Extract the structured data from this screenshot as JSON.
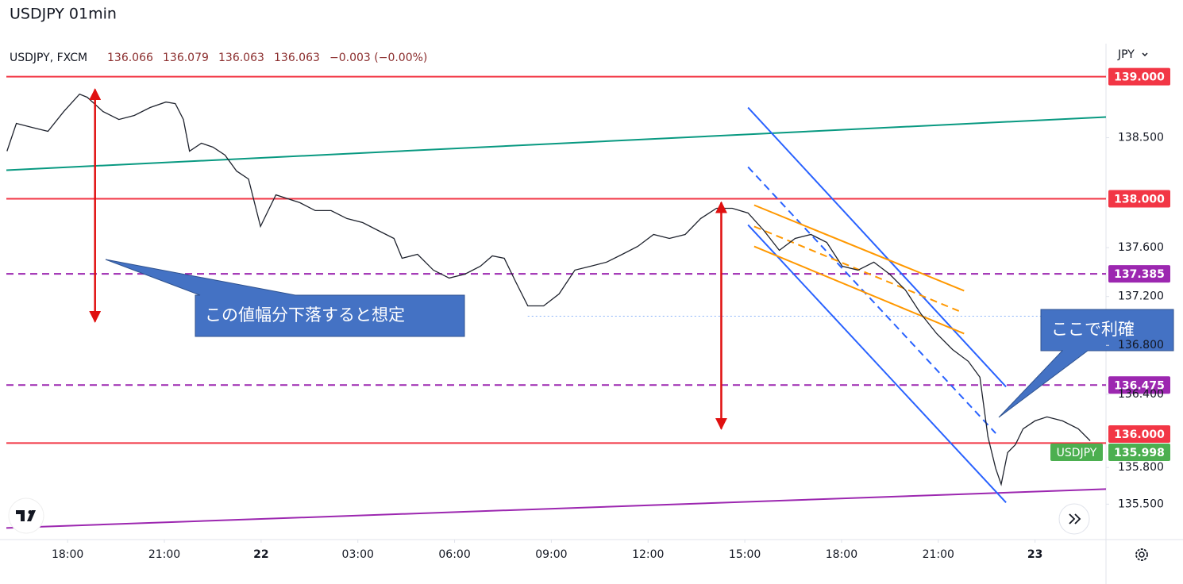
{
  "title": "USDJPY 01min",
  "chart_data": {
    "type": "line",
    "symbol": "USDJPY, FXCM",
    "ohlc": [
      "136.066",
      "136.079",
      "136.063",
      "136.063"
    ],
    "change": "−0.003 (−0.00%)",
    "currency": "JPY",
    "x": [
      16.12,
      16.41,
      16.9,
      17.39,
      17.88,
      18.37,
      18.61,
      19.1,
      19.59,
      20.07,
      20.56,
      21.05,
      21.34,
      21.59,
      21.78,
      22.15,
      22.51,
      22.88,
      23.24,
      23.61,
      23.98,
      24.22,
      24.46,
      24.83,
      25.2,
      25.68,
      26.17,
      26.66,
      27.15,
      27.63,
      28.12,
      28.37,
      28.85,
      29.34,
      29.83,
      30.32,
      30.8,
      31.17,
      31.54,
      31.9,
      32.27,
      32.76,
      33.24,
      33.73,
      34.22,
      34.71,
      35.2,
      35.68,
      36.17,
      36.66,
      37.15,
      37.63,
      38.12,
      38.61,
      39.1,
      39.59,
      40.07,
      40.56,
      41.05,
      41.54,
      42.02,
      42.51,
      43,
      43.49,
      43.98,
      44.46,
      44.95,
      45.44,
      45.93,
      46.29,
      46.54,
      46.78,
      46.95,
      47.15,
      47.39,
      47.63,
      48,
      48.37,
      48.85,
      49.34,
      49.71
    ],
    "series": [
      {
        "name": "USDJPY",
        "color": "#1e222d",
        "values": [
          138.39,
          138.617,
          138.584,
          138.552,
          138.714,
          138.857,
          138.831,
          138.714,
          138.649,
          138.682,
          138.747,
          138.792,
          138.779,
          138.649,
          138.39,
          138.455,
          138.422,
          138.357,
          138.227,
          138.162,
          137.773,
          137.903,
          138.032,
          138.0,
          137.968,
          137.903,
          137.903,
          137.838,
          137.805,
          137.74,
          137.675,
          137.513,
          137.545,
          137.416,
          137.351,
          137.383,
          137.448,
          137.532,
          137.513,
          137.318,
          137.123,
          137.123,
          137.221,
          137.416,
          137.448,
          137.481,
          137.545,
          137.61,
          137.708,
          137.675,
          137.708,
          137.838,
          137.922,
          137.922,
          137.883,
          137.74,
          137.578,
          137.675,
          137.708,
          137.643,
          137.448,
          137.416,
          137.481,
          137.383,
          137.253,
          137.058,
          136.896,
          136.766,
          136.669,
          136.539,
          136.052,
          135.792,
          135.662,
          135.922,
          135.987,
          136.117,
          136.182,
          136.214,
          136.182,
          136.117,
          136.019
        ]
      }
    ],
    "xlim": [
      16.1,
      50.2
    ],
    "xticks": [
      {
        "value": 18,
        "label": "18:00"
      },
      {
        "value": 21,
        "label": "21:00"
      },
      {
        "value": 24,
        "label": "22"
      },
      {
        "value": 27,
        "label": "03:00"
      },
      {
        "value": 30,
        "label": "06:00"
      },
      {
        "value": 33,
        "label": "09:00"
      },
      {
        "value": 36,
        "label": "12:00"
      },
      {
        "value": 39,
        "label": "15:00"
      },
      {
        "value": 42,
        "label": "18:00"
      },
      {
        "value": 45,
        "label": "21:00"
      },
      {
        "value": 48,
        "label": "23"
      }
    ],
    "ylim": [
      135.21,
      139.27
    ],
    "yticks": [
      {
        "value": 138.5,
        "label": "138.500"
      },
      {
        "value": 137.6,
        "label": "137.600"
      },
      {
        "value": 137.2,
        "label": "137.200"
      },
      {
        "value": 136.8,
        "label": "136.800"
      },
      {
        "value": 136.4,
        "label": "136.400"
      },
      {
        "value": 135.8,
        "label": "135.800"
      },
      {
        "value": 135.5,
        "label": "135.500"
      }
    ],
    "last_price": {
      "value": 135.998,
      "label": "135.998",
      "color": "#4caf50"
    },
    "levels": [
      {
        "value": 139.0,
        "label": "139.000",
        "color": "#f23645",
        "style": "solid"
      },
      {
        "value": 138.0,
        "label": "138.000",
        "color": "#f23645",
        "style": "solid"
      },
      {
        "value": 137.385,
        "label": "137.385",
        "color": "#9c27b0",
        "style": "dashed"
      },
      {
        "value": 136.475,
        "label": "136.475",
        "color": "#9c27b0",
        "style": "dashed"
      },
      {
        "value": 136.0,
        "label": "136.000",
        "color": "#f23645",
        "style": "solid"
      },
      {
        "value": 137.039,
        "color": "#8ab4f8",
        "style": "dotted",
        "from": 32.27
      }
    ],
    "trendlines": [
      {
        "x": [
          16.1,
          50.2
        ],
        "values": [
          138.234,
          138.669
        ],
        "color": "#089981",
        "style": "solid"
      },
      {
        "x": [
          16.1,
          50.2
        ],
        "values": [
          135.305,
          135.623
        ],
        "color": "#9c27b0",
        "style": "solid"
      },
      {
        "x": [
          39.1,
          47.1
        ],
        "values": [
          138.747,
          136.461
        ],
        "color": "#2962ff",
        "style": "solid"
      },
      {
        "x": [
          39.1,
          46.78
        ],
        "values": [
          138.26,
          136.08
        ],
        "color": "#2962ff",
        "style": "dashed"
      },
      {
        "x": [
          39.1,
          47.1
        ],
        "values": [
          137.786,
          135.513
        ],
        "color": "#2962ff",
        "style": "solid"
      },
      {
        "x": [
          39.29,
          45.8
        ],
        "values": [
          137.948,
          137.247
        ],
        "color": "#ff9800",
        "style": "solid"
      },
      {
        "x": [
          39.29,
          45.73
        ],
        "values": [
          137.773,
          137.071
        ],
        "color": "#ff9800",
        "style": "dashed"
      },
      {
        "x": [
          39.29,
          45.8
        ],
        "values": [
          137.61,
          136.896
        ],
        "color": "#ff9800",
        "style": "solid"
      }
    ],
    "arrows": [
      {
        "x": 18.85,
        "values": [
          138.896,
          136.994
        ],
        "color": "#e01010"
      },
      {
        "x": 38.27,
        "values": [
          137.97,
          136.117
        ],
        "color": "#e01010"
      }
    ],
    "annotations": [
      {
        "text": "この値幅分下落すると想定"
      },
      {
        "text": "ここで利確"
      }
    ]
  }
}
